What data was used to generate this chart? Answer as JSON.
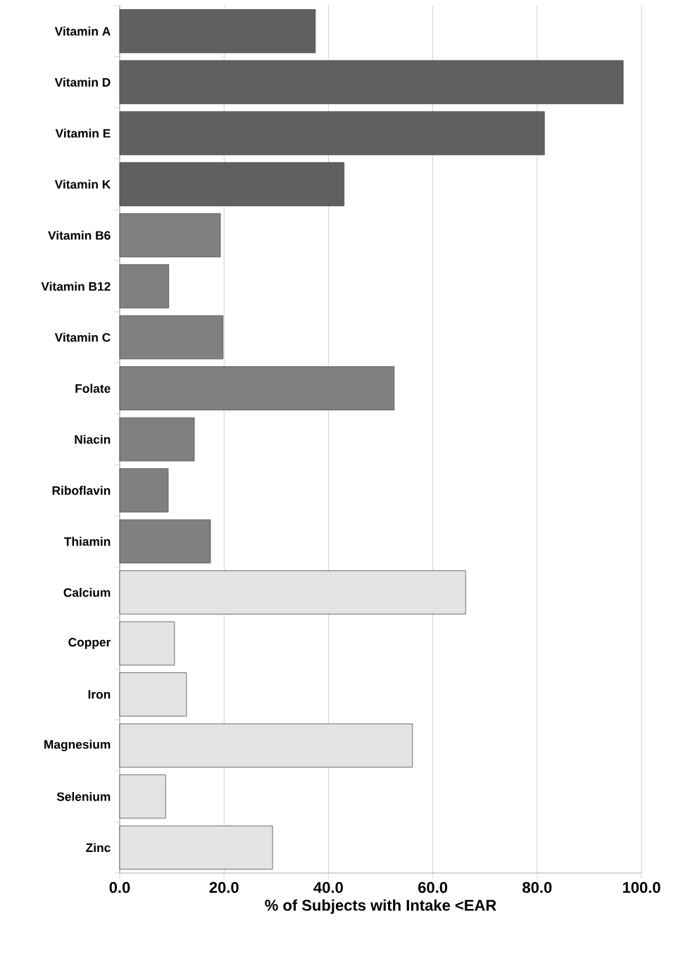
{
  "chart_data": {
    "type": "bar",
    "orientation": "horizontal",
    "xlabel": "% of Subjects with Intake <EAR",
    "categories": [
      "Vitamin A",
      "Vitamin D",
      "Vitamin E",
      "Vitamin K",
      "Vitamin B6",
      "Vitamin B12",
      "Vitamin C",
      "Folate",
      "Niacin",
      "Riboflavin",
      "Thiamin",
      "Calcium",
      "Copper",
      "Iron",
      "Magnesium",
      "Selenium",
      "Zinc"
    ],
    "values": [
      37.5,
      96.5,
      81.4,
      43.0,
      19.3,
      9.4,
      19.8,
      52.6,
      14.3,
      9.3,
      17.4,
      66.3,
      10.5,
      12.8,
      56.1,
      8.8,
      29.3
    ],
    "colors": [
      "#606060",
      "#606060",
      "#606060",
      "#606060",
      "#808080",
      "#808080",
      "#808080",
      "#808080",
      "#808080",
      "#808080",
      "#808080",
      "#e4e4e4",
      "#e4e4e4",
      "#e4e4e4",
      "#e4e4e4",
      "#e4e4e4",
      "#e4e4e4"
    ],
    "xlim": [
      0,
      100
    ],
    "xticks": [
      {
        "value": 0,
        "label": "0.0"
      },
      {
        "value": 20,
        "label": "20.0"
      },
      {
        "value": 40,
        "label": "40.0"
      },
      {
        "value": 60,
        "label": "60.0"
      },
      {
        "value": 80,
        "label": "80.0"
      },
      {
        "value": 100,
        "label": "100.0"
      }
    ],
    "grid": "x"
  }
}
